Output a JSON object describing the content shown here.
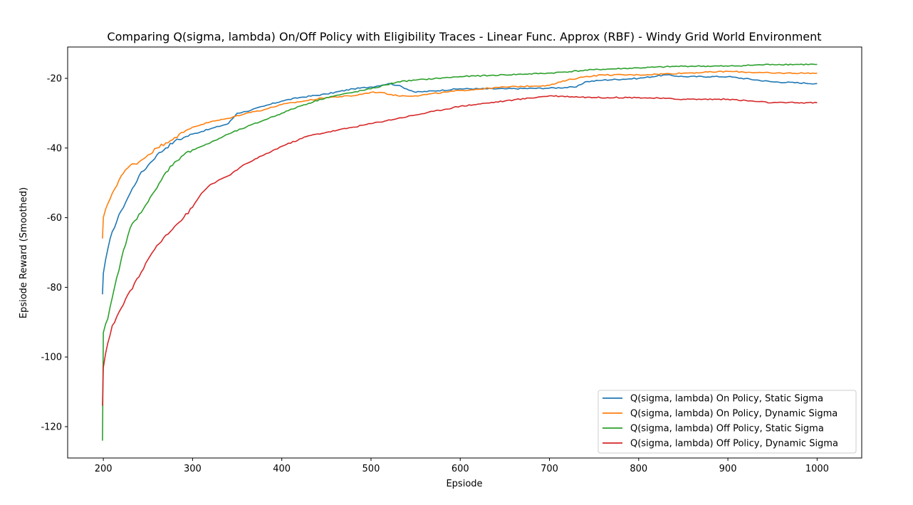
{
  "chart_data": {
    "type": "line",
    "title": "Comparing Q(sigma, lambda) On/Off Policy with Eligibility Traces - Linear Func. Approx (RBF) - Windy Grid World Environment",
    "xlabel": "Epsiode",
    "ylabel": "Epsiode Reward (Smoothed)",
    "xlim": [
      160,
      1050
    ],
    "ylim": [
      -129,
      -11
    ],
    "xticks": [
      "200",
      "300",
      "400",
      "500",
      "600",
      "700",
      "800",
      "900",
      "1000"
    ],
    "yticks": [
      "-120",
      "-100",
      "-80",
      "-60",
      "-40",
      "-20"
    ],
    "grid": false,
    "legend_position": "bottom-right",
    "series": [
      {
        "name": "Q(sigma, lambda) On Policy, Static Sigma",
        "color": "#1f77b4",
        "x": [
          199,
          200,
          205,
          210,
          220,
          230,
          240,
          250,
          260,
          270,
          280,
          290,
          300,
          320,
          340,
          350,
          360,
          380,
          400,
          420,
          450,
          480,
          500,
          520,
          530,
          550,
          600,
          650,
          700,
          730,
          740,
          760,
          800,
          830,
          850,
          900,
          950,
          1000
        ],
        "y": [
          -82,
          -76,
          -69,
          -64,
          -58,
          -53,
          -48,
          -45,
          -42,
          -40,
          -38,
          -37,
          -36,
          -34.5,
          -33,
          -30,
          -29.5,
          -28,
          -26.5,
          -25.5,
          -24.5,
          -23,
          -22.5,
          -21.5,
          -22,
          -24,
          -23,
          -23,
          -22.8,
          -22.5,
          -21,
          -20.5,
          -20,
          -19,
          -19.5,
          -19.5,
          -21,
          -21.5
        ]
      },
      {
        "name": "Q(sigma, lambda) On Policy, Dynamic Sigma",
        "color": "#ff7f0e",
        "x": [
          199,
          200,
          205,
          210,
          220,
          230,
          240,
          250,
          260,
          270,
          280,
          290,
          300,
          320,
          340,
          360,
          380,
          400,
          450,
          480,
          500,
          510,
          530,
          550,
          600,
          650,
          700,
          720,
          740,
          760,
          800,
          850,
          900,
          950,
          1000
        ],
        "y": [
          -66,
          -60,
          -56,
          -53,
          -48,
          -45,
          -44,
          -42,
          -40,
          -38.5,
          -37,
          -35.5,
          -34,
          -32.5,
          -31.5,
          -30,
          -29,
          -27.5,
          -25.5,
          -25,
          -24,
          -24,
          -25,
          -25,
          -23.5,
          -22.5,
          -22,
          -20.5,
          -19.5,
          -19,
          -19,
          -18.5,
          -18,
          -18.5,
          -18.5
        ]
      },
      {
        "name": "Q(sigma, lambda) Off Policy, Static Sigma",
        "color": "#2ca02c",
        "x": [
          199,
          200,
          205,
          210,
          220,
          230,
          240,
          250,
          260,
          270,
          280,
          290,
          300,
          320,
          340,
          360,
          380,
          400,
          420,
          450,
          480,
          500,
          530,
          550,
          600,
          650,
          700,
          750,
          800,
          850,
          900,
          950,
          1000
        ],
        "y": [
          -124,
          -93,
          -89,
          -83,
          -72,
          -63,
          -59,
          -55.5,
          -51.5,
          -47,
          -44,
          -42,
          -40.5,
          -38.5,
          -36,
          -34,
          -32,
          -30,
          -28,
          -25.5,
          -24,
          -23,
          -21,
          -20.5,
          -19.5,
          -19,
          -18.5,
          -17.5,
          -17,
          -16.5,
          -16.5,
          -16,
          -16
        ]
      },
      {
        "name": "Q(sigma, lambda) Off Policy, Dynamic Sigma",
        "color": "#d62728",
        "x": [
          199,
          200,
          205,
          210,
          220,
          230,
          240,
          250,
          260,
          270,
          280,
          290,
          300,
          310,
          320,
          340,
          360,
          380,
          400,
          430,
          450,
          480,
          500,
          530,
          550,
          600,
          650,
          700,
          750,
          800,
          850,
          900,
          950,
          1000
        ],
        "y": [
          -114,
          -103,
          -96,
          -91,
          -86,
          -81,
          -77,
          -72,
          -68,
          -65,
          -62.5,
          -60,
          -57,
          -53,
          -50.5,
          -48,
          -44.5,
          -42,
          -39.5,
          -36.5,
          -35.5,
          -34,
          -33,
          -31.5,
          -30.5,
          -28,
          -26.5,
          -25,
          -25.5,
          -25.5,
          -26,
          -26,
          -27,
          -27
        ]
      }
    ]
  }
}
